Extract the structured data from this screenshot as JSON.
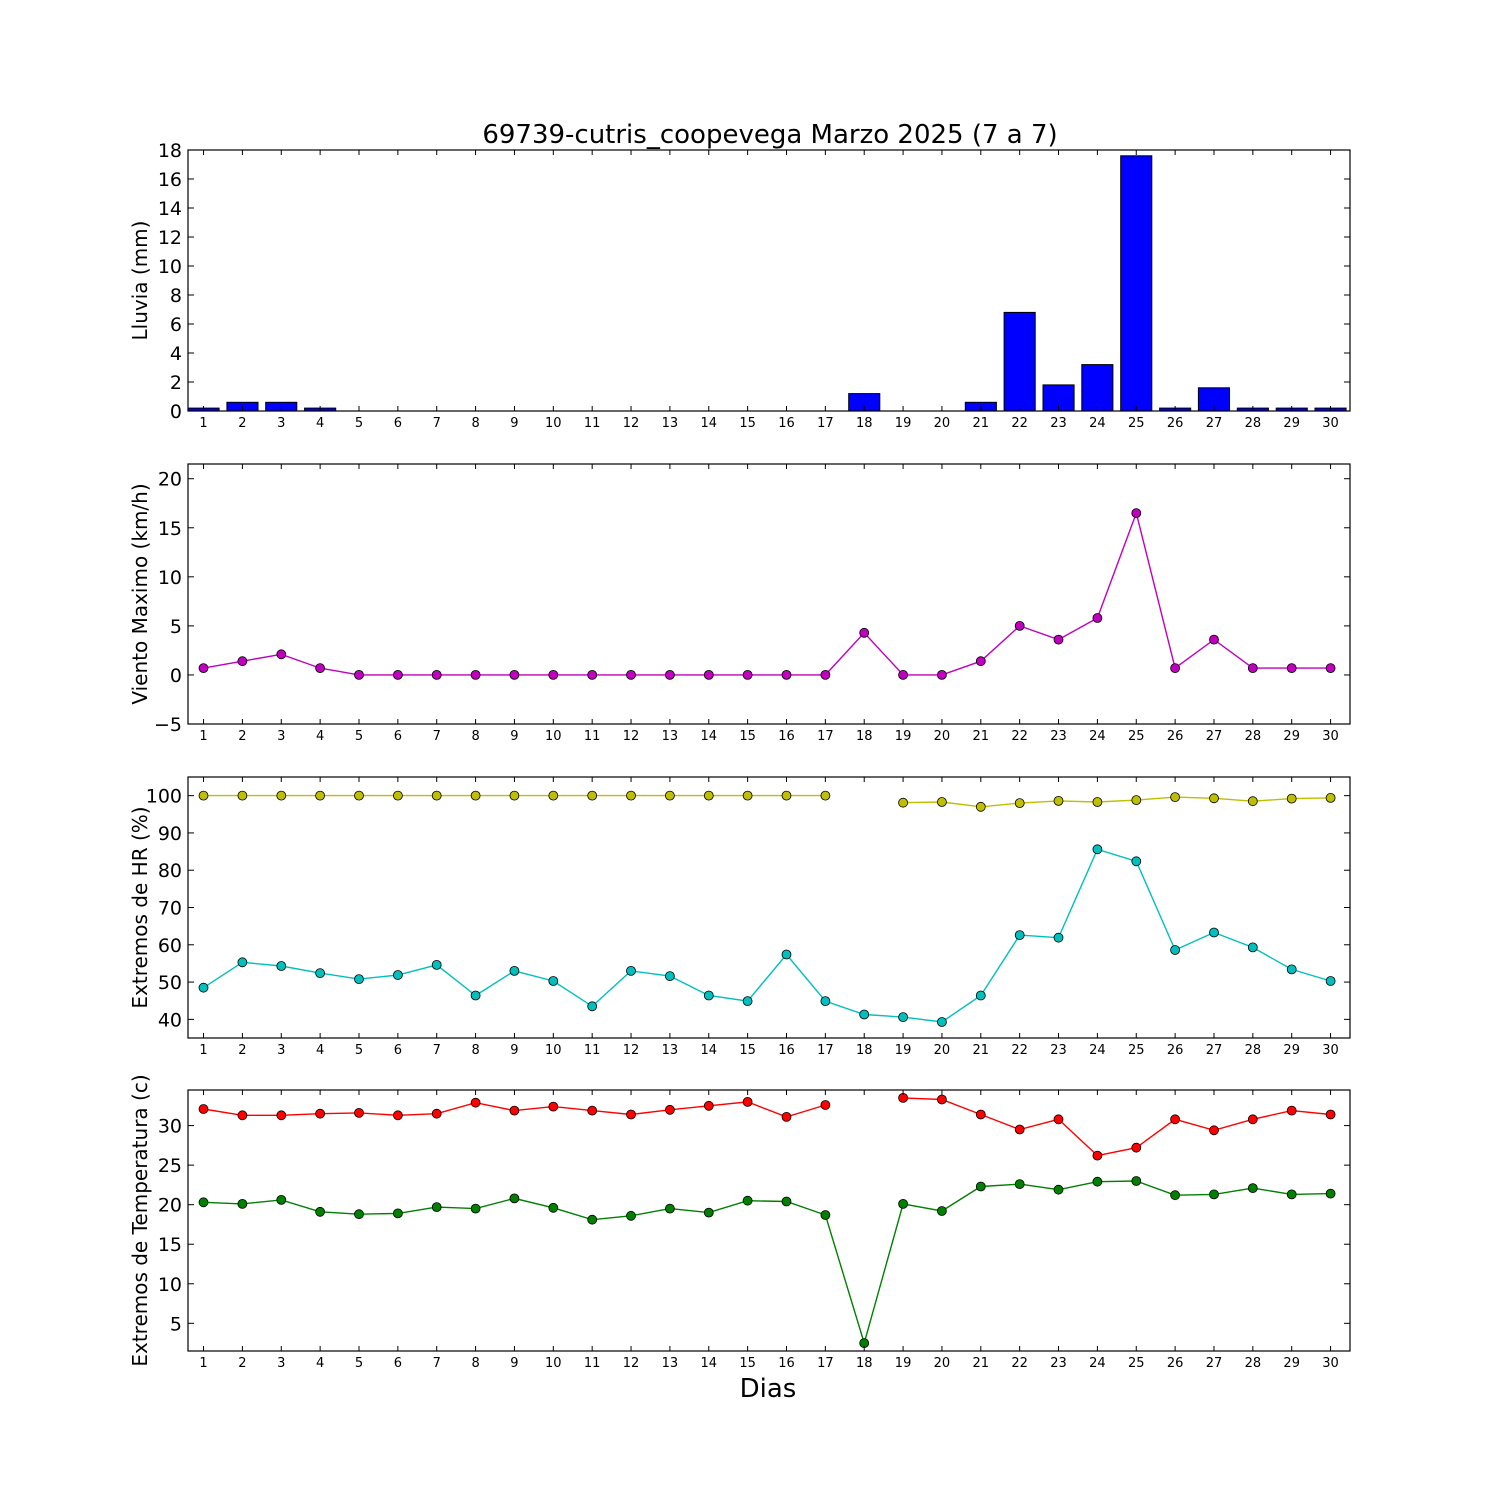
{
  "figure": {
    "title": "69739-cutris_coopevega Marzo 2025  (7 a 7)",
    "xlabel": "Dias"
  },
  "chart_data": [
    {
      "type": "bar",
      "ylabel": "Lluvia (mm)",
      "ylim": [
        0,
        18
      ],
      "yticks": [
        0,
        2,
        4,
        6,
        8,
        10,
        12,
        14,
        16,
        18
      ],
      "xlim": [
        0.6,
        30.5
      ],
      "categories": [
        1,
        2,
        3,
        4,
        5,
        6,
        7,
        8,
        9,
        10,
        11,
        12,
        13,
        14,
        15,
        16,
        17,
        18,
        19,
        20,
        21,
        22,
        23,
        24,
        25,
        26,
        27,
        28,
        29,
        30
      ],
      "color": "#0000ff",
      "values": [
        0.2,
        0.6,
        0.6,
        0.2,
        0,
        0,
        0,
        0,
        0,
        0,
        0,
        0,
        0,
        0,
        0,
        0,
        0,
        1.2,
        0,
        0,
        0.6,
        6.8,
        1.8,
        3.2,
        17.6,
        0.2,
        1.6,
        0.2,
        0.2,
        0.2
      ]
    },
    {
      "type": "line",
      "ylabel": "Viento Maximo (km/h)",
      "ylim": [
        -5,
        21.5
      ],
      "yticks": [
        -5,
        0,
        5,
        10,
        15,
        20
      ],
      "xlim": [
        0.6,
        30.5
      ],
      "x": [
        1,
        2,
        3,
        4,
        5,
        6,
        7,
        8,
        9,
        10,
        11,
        12,
        13,
        14,
        15,
        16,
        17,
        18,
        19,
        20,
        21,
        22,
        23,
        24,
        25,
        26,
        27,
        28,
        29,
        30
      ],
      "series": [
        {
          "color": "#bf00bf",
          "values": [
            0.7,
            1.4,
            2.1,
            0.7,
            0,
            0,
            0,
            0,
            0,
            0,
            0,
            0,
            0,
            0,
            0,
            0,
            0,
            4.3,
            0,
            0,
            1.4,
            5.0,
            3.6,
            5.8,
            16.5,
            0.7,
            3.6,
            0.7,
            0.7,
            0.7
          ]
        }
      ]
    },
    {
      "type": "line",
      "ylabel": "Extremos de HR (%)",
      "ylim": [
        35,
        105
      ],
      "yticks": [
        40,
        50,
        60,
        70,
        80,
        90,
        100
      ],
      "xlim": [
        0.6,
        30.5
      ],
      "x": [
        1,
        2,
        3,
        4,
        5,
        6,
        7,
        8,
        9,
        10,
        11,
        12,
        13,
        14,
        15,
        16,
        17,
        18,
        19,
        20,
        21,
        22,
        23,
        24,
        25,
        26,
        27,
        28,
        29,
        30
      ],
      "series": [
        {
          "color": "#bfbf00",
          "values": [
            100,
            100,
            100,
            100,
            100,
            100,
            100,
            100,
            100,
            100,
            100,
            100,
            100,
            100,
            100,
            100,
            100,
            null,
            98.1,
            98.3,
            97.0,
            98.0,
            98.6,
            98.3,
            98.8,
            99.6,
            99.3,
            98.5,
            99.2,
            99.4
          ]
        },
        {
          "color": "#00bfbf",
          "values": [
            48.5,
            55.3,
            54.3,
            52.4,
            50.8,
            51.9,
            54.6,
            46.4,
            53.0,
            50.3,
            43.5,
            53.0,
            51.6,
            46.4,
            44.9,
            57.4,
            44.9,
            41.3,
            40.6,
            39.3,
            46.4,
            62.6,
            61.9,
            85.6,
            82.4,
            58.6,
            63.3,
            59.3,
            53.4,
            50.3
          ]
        }
      ]
    },
    {
      "type": "line",
      "ylabel": "Extremos de Temperatura (c)",
      "ylim": [
        1.5,
        34.5
      ],
      "yticks": [
        5,
        10,
        15,
        20,
        25,
        30
      ],
      "xlim": [
        0.6,
        30.5
      ],
      "x": [
        1,
        2,
        3,
        4,
        5,
        6,
        7,
        8,
        9,
        10,
        11,
        12,
        13,
        14,
        15,
        16,
        17,
        18,
        19,
        20,
        21,
        22,
        23,
        24,
        25,
        26,
        27,
        28,
        29,
        30
      ],
      "series": [
        {
          "color": "#ff0000",
          "values": [
            32.1,
            31.3,
            31.3,
            31.5,
            31.6,
            31.3,
            31.5,
            32.9,
            31.9,
            32.4,
            31.9,
            31.4,
            32.0,
            32.5,
            33.0,
            31.1,
            32.6,
            null,
            33.5,
            33.3,
            31.4,
            29.5,
            30.8,
            26.2,
            27.2,
            30.8,
            29.4,
            30.8,
            31.9,
            31.4
          ]
        },
        {
          "color": "#008000",
          "values": [
            20.3,
            20.1,
            20.6,
            19.1,
            18.8,
            18.9,
            19.7,
            19.5,
            20.8,
            19.6,
            18.1,
            18.6,
            19.5,
            19.0,
            20.5,
            20.4,
            18.7,
            2.5,
            20.1,
            19.2,
            22.3,
            22.6,
            21.9,
            22.9,
            23.0,
            21.2,
            21.3,
            22.1,
            21.3,
            21.4
          ]
        }
      ]
    }
  ]
}
